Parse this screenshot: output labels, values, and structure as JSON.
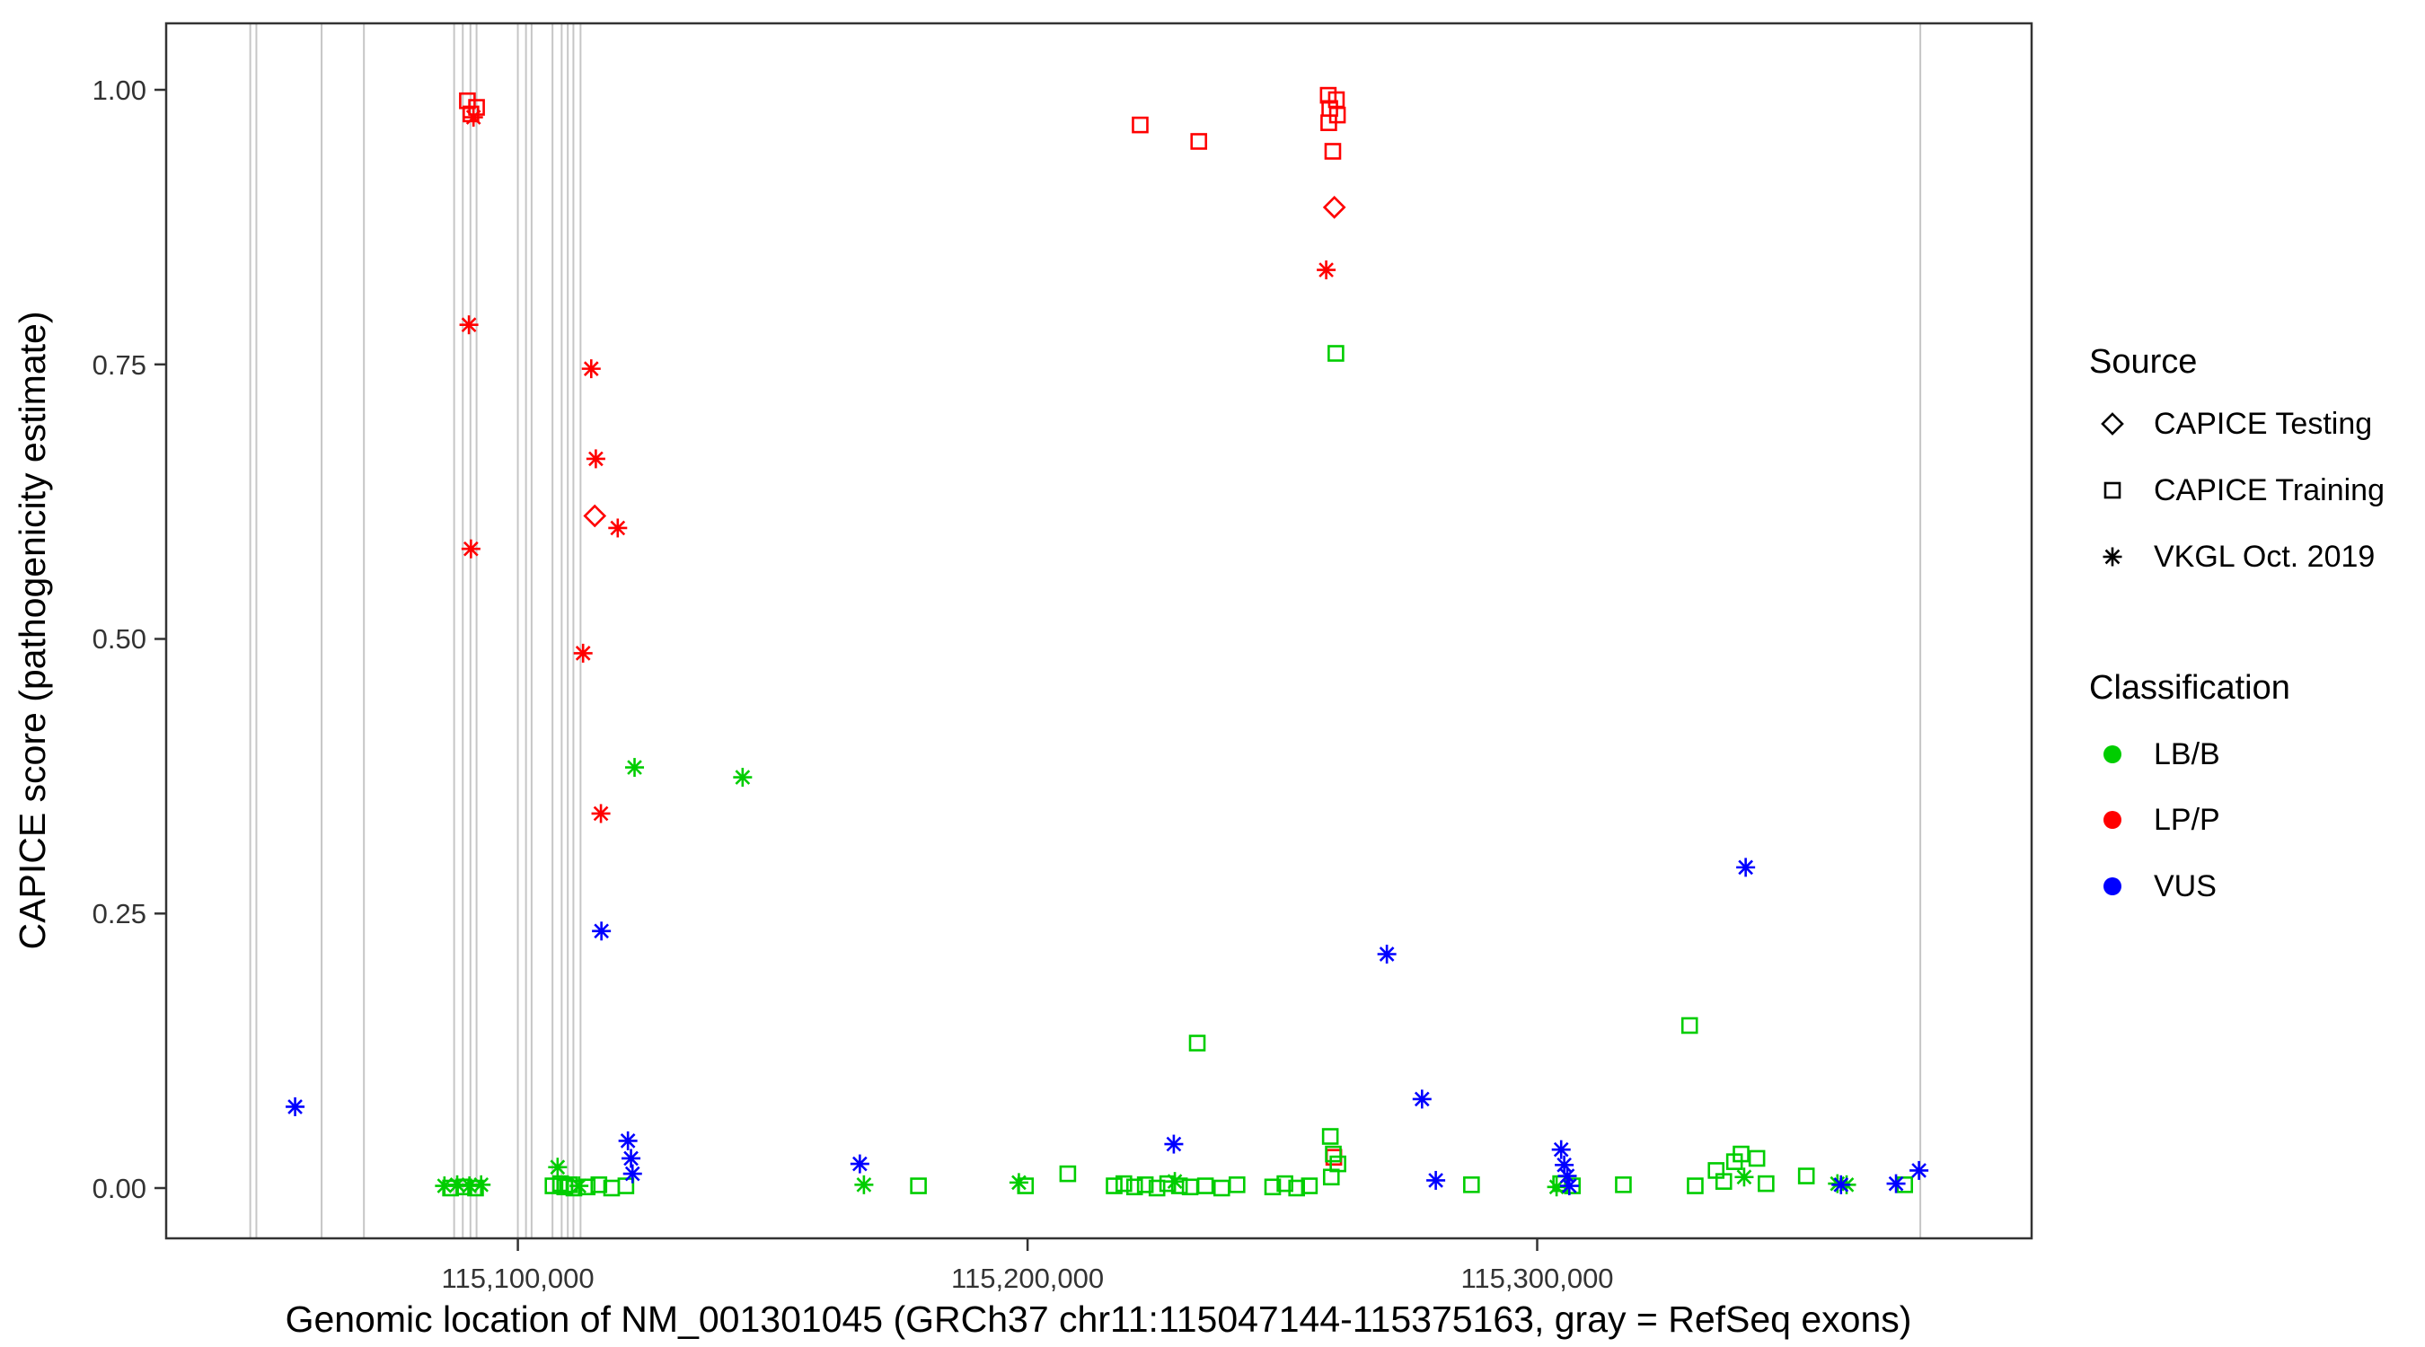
{
  "chart_data": {
    "type": "scatter",
    "title": "",
    "xlabel": "Genomic location of NM_001301045 (GRCh37 chr11:115047144-115375163, gray = RefSeq exons)",
    "ylabel": "CAPICE score (pathogenicity estimate)",
    "xlim": [
      115031000,
      115397000
    ],
    "ylim": [
      -0.0458,
      1.0605
    ],
    "grid": false,
    "legend_position": "right",
    "x_ticks": [
      {
        "value": 115100000,
        "label": "115,100,000"
      },
      {
        "value": 115200000,
        "label": "115,200,000"
      },
      {
        "value": 115300000,
        "label": "115,300,000"
      }
    ],
    "y_ticks": [
      {
        "value": 0.0,
        "label": "0.00"
      },
      {
        "value": 0.25,
        "label": "0.25"
      },
      {
        "value": 0.5,
        "label": "0.50"
      },
      {
        "value": 0.75,
        "label": "0.75"
      },
      {
        "value": 1.0,
        "label": "1.00"
      }
    ],
    "colors": {
      "exon": "#C6C6C6",
      "panel_border": "#333333"
    },
    "shape_by_source": {
      "CAPICE Testing": "diamond",
      "CAPICE Training": "square",
      "VKGL Oct. 2019": "asterisk"
    },
    "color_by_classification": {
      "LB/B": "#00CD00",
      "LP/P": "#FF0000",
      "VUS": "#0000FF"
    },
    "legend": {
      "source": {
        "title": "Source",
        "items": [
          {
            "label": "CAPICE Testing",
            "shape": "diamond"
          },
          {
            "label": "CAPICE Training",
            "shape": "square"
          },
          {
            "label": "VKGL Oct. 2019",
            "shape": "asterisk"
          }
        ]
      },
      "classification": {
        "title": "Classification",
        "items": [
          {
            "label": "LB/B",
            "color": "#00CD00"
          },
          {
            "label": "LP/P",
            "color": "#FF0000"
          },
          {
            "label": "VUS",
            "color": "#0000FF"
          }
        ]
      }
    },
    "exons_note": "gray vertical lines = RefSeq exons",
    "exons": [
      115047500,
      115048700,
      115061500,
      115069800,
      115087500,
      115089200,
      115090700,
      115091900,
      115100000,
      115101600,
      115102700,
      115106800,
      115108600,
      115109800,
      115110900,
      115112300,
      115375163
    ],
    "points_format": [
      "bp",
      "score",
      "source",
      "classification"
    ],
    "points": [
      [
        115090100,
        0.99,
        "CAPICE Training",
        "LP/P"
      ],
      [
        115091900,
        0.984,
        "CAPICE Training",
        "LP/P"
      ],
      [
        115090800,
        0.978,
        "CAPICE Training",
        "LP/P"
      ],
      [
        115091300,
        0.975,
        "VKGL Oct. 2019",
        "LP/P"
      ],
      [
        115090400,
        0.786,
        "VKGL Oct. 2019",
        "LP/P"
      ],
      [
        115090800,
        0.582,
        "VKGL Oct. 2019",
        "LP/P"
      ],
      [
        115114400,
        0.746,
        "VKGL Oct. 2019",
        "LP/P"
      ],
      [
        115115300,
        0.664,
        "VKGL Oct. 2019",
        "LP/P"
      ],
      [
        115115100,
        0.612,
        "CAPICE Testing",
        "LP/P"
      ],
      [
        115119600,
        0.601,
        "VKGL Oct. 2019",
        "LP/P"
      ],
      [
        115112800,
        0.487,
        "VKGL Oct. 2019",
        "LP/P"
      ],
      [
        115116300,
        0.341,
        "VKGL Oct. 2019",
        "LP/P"
      ],
      [
        115222100,
        0.968,
        "CAPICE Training",
        "LP/P"
      ],
      [
        115233600,
        0.953,
        "CAPICE Training",
        "LP/P"
      ],
      [
        115259000,
        0.995,
        "CAPICE Training",
        "LP/P"
      ],
      [
        115260600,
        0.991,
        "CAPICE Training",
        "LP/P"
      ],
      [
        115259300,
        0.983,
        "CAPICE Training",
        "LP/P"
      ],
      [
        115260800,
        0.977,
        "CAPICE Training",
        "LP/P"
      ],
      [
        115259100,
        0.97,
        "CAPICE Training",
        "LP/P"
      ],
      [
        115259900,
        0.944,
        "CAPICE Training",
        "LP/P"
      ],
      [
        115260200,
        0.893,
        "CAPICE Testing",
        "LP/P"
      ],
      [
        115258600,
        0.836,
        "VKGL Oct. 2019",
        "LP/P"
      ],
      [
        115260100,
        0.028,
        "CAPICE Training",
        "LP/P"
      ],
      [
        115122900,
        0.383,
        "VKGL Oct. 2019",
        "LB/B"
      ],
      [
        115144100,
        0.374,
        "VKGL Oct. 2019",
        "LB/B"
      ],
      [
        115260500,
        0.76,
        "CAPICE Training",
        "LB/B"
      ],
      [
        115233300,
        0.132,
        "CAPICE Training",
        "LB/B"
      ],
      [
        115329900,
        0.148,
        "CAPICE Training",
        "LB/B"
      ],
      [
        115085600,
        0.002,
        "VKGL Oct. 2019",
        "LB/B"
      ],
      [
        115086800,
        0.0,
        "CAPICE Training",
        "LB/B"
      ],
      [
        115088100,
        0.003,
        "VKGL Oct. 2019",
        "LB/B"
      ],
      [
        115089400,
        0.001,
        "CAPICE Training",
        "LB/B"
      ],
      [
        115090500,
        0.002,
        "VKGL Oct. 2019",
        "LB/B"
      ],
      [
        115091700,
        0.0,
        "CAPICE Training",
        "LB/B"
      ],
      [
        115092800,
        0.003,
        "VKGL Oct. 2019",
        "LB/B"
      ],
      [
        115106900,
        0.002,
        "CAPICE Training",
        "LB/B"
      ],
      [
        115107800,
        0.019,
        "VKGL Oct. 2019",
        "LB/B"
      ],
      [
        115108400,
        0.004,
        "CAPICE Training",
        "LB/B"
      ],
      [
        115109200,
        0.001,
        "CAPICE Training",
        "LB/B"
      ],
      [
        115110100,
        0.003,
        "CAPICE Training",
        "LB/B"
      ],
      [
        115111000,
        0.0,
        "CAPICE Training",
        "LB/B"
      ],
      [
        115112000,
        0.002,
        "VKGL Oct. 2019",
        "LB/B"
      ],
      [
        115113600,
        0.001,
        "CAPICE Training",
        "LB/B"
      ],
      [
        115115900,
        0.003,
        "CAPICE Training",
        "LB/B"
      ],
      [
        115118400,
        0.0,
        "CAPICE Training",
        "LB/B"
      ],
      [
        115121200,
        0.002,
        "CAPICE Training",
        "LB/B"
      ],
      [
        115167900,
        0.003,
        "VKGL Oct. 2019",
        "LB/B"
      ],
      [
        115178600,
        0.002,
        "CAPICE Training",
        "LB/B"
      ],
      [
        115198300,
        0.005,
        "VKGL Oct. 2019",
        "LB/B"
      ],
      [
        115199600,
        0.002,
        "CAPICE Training",
        "LB/B"
      ],
      [
        115207900,
        0.013,
        "CAPICE Training",
        "LB/B"
      ],
      [
        115217000,
        0.002,
        "CAPICE Training",
        "LB/B"
      ],
      [
        115218900,
        0.004,
        "CAPICE Training",
        "LB/B"
      ],
      [
        115221000,
        0.001,
        "CAPICE Training",
        "LB/B"
      ],
      [
        115223100,
        0.003,
        "CAPICE Training",
        "LB/B"
      ],
      [
        115225400,
        0.0,
        "CAPICE Training",
        "LB/B"
      ],
      [
        115227500,
        0.004,
        "CAPICE Training",
        "LB/B"
      ],
      [
        115228900,
        0.006,
        "VKGL Oct. 2019",
        "LB/B"
      ],
      [
        115229800,
        0.002,
        "CAPICE Training",
        "LB/B"
      ],
      [
        115231900,
        0.001,
        "CAPICE Training",
        "LB/B"
      ],
      [
        115234900,
        0.002,
        "CAPICE Training",
        "LB/B"
      ],
      [
        115238100,
        0.0,
        "CAPICE Training",
        "LB/B"
      ],
      [
        115241100,
        0.003,
        "CAPICE Training",
        "LB/B"
      ],
      [
        115248100,
        0.001,
        "CAPICE Training",
        "LB/B"
      ],
      [
        115250500,
        0.004,
        "CAPICE Training",
        "LB/B"
      ],
      [
        115252800,
        0.0,
        "CAPICE Training",
        "LB/B"
      ],
      [
        115255300,
        0.002,
        "CAPICE Training",
        "LB/B"
      ],
      [
        115259400,
        0.047,
        "CAPICE Training",
        "LB/B"
      ],
      [
        115260000,
        0.031,
        "CAPICE Training",
        "LB/B"
      ],
      [
        115260900,
        0.022,
        "CAPICE Training",
        "LB/B"
      ],
      [
        115259600,
        0.01,
        "CAPICE Training",
        "LB/B"
      ],
      [
        115287100,
        0.003,
        "CAPICE Training",
        "LB/B"
      ],
      [
        115303800,
        0.001,
        "VKGL Oct. 2019",
        "LB/B"
      ],
      [
        115304600,
        0.004,
        "CAPICE Training",
        "LB/B"
      ],
      [
        115306900,
        0.002,
        "CAPICE Training",
        "LB/B"
      ],
      [
        115316900,
        0.003,
        "CAPICE Training",
        "LB/B"
      ],
      [
        115331000,
        0.002,
        "CAPICE Training",
        "LB/B"
      ],
      [
        115335100,
        0.016,
        "CAPICE Training",
        "LB/B"
      ],
      [
        115336600,
        0.006,
        "CAPICE Training",
        "LB/B"
      ],
      [
        115338700,
        0.024,
        "CAPICE Training",
        "LB/B"
      ],
      [
        115340000,
        0.031,
        "CAPICE Training",
        "LB/B"
      ],
      [
        115340600,
        0.01,
        "VKGL Oct. 2019",
        "LB/B"
      ],
      [
        115343100,
        0.027,
        "CAPICE Training",
        "LB/B"
      ],
      [
        115344900,
        0.004,
        "CAPICE Training",
        "LB/B"
      ],
      [
        115352800,
        0.011,
        "CAPICE Training",
        "LB/B"
      ],
      [
        115358900,
        0.004,
        "VKGL Oct. 2019",
        "LB/B"
      ],
      [
        115360700,
        0.003,
        "VKGL Oct. 2019",
        "LB/B"
      ],
      [
        115372100,
        0.003,
        "CAPICE Training",
        "LB/B"
      ],
      [
        115056300,
        0.074,
        "VKGL Oct. 2019",
        "VUS"
      ],
      [
        115116400,
        0.234,
        "VKGL Oct. 2019",
        "VUS"
      ],
      [
        115121600,
        0.043,
        "VKGL Oct. 2019",
        "VUS"
      ],
      [
        115122200,
        0.027,
        "VKGL Oct. 2019",
        "VUS"
      ],
      [
        115122500,
        0.013,
        "VKGL Oct. 2019",
        "VUS"
      ],
      [
        115167100,
        0.022,
        "VKGL Oct. 2019",
        "VUS"
      ],
      [
        115228700,
        0.04,
        "VKGL Oct. 2019",
        "VUS"
      ],
      [
        115270500,
        0.213,
        "VKGL Oct. 2019",
        "VUS"
      ],
      [
        115277400,
        0.081,
        "VKGL Oct. 2019",
        "VUS"
      ],
      [
        115280100,
        0.007,
        "VKGL Oct. 2019",
        "VUS"
      ],
      [
        115304700,
        0.035,
        "VKGL Oct. 2019",
        "VUS"
      ],
      [
        115305300,
        0.021,
        "VKGL Oct. 2019",
        "VUS"
      ],
      [
        115305900,
        0.011,
        "VKGL Oct. 2019",
        "VUS"
      ],
      [
        115306300,
        0.002,
        "VKGL Oct. 2019",
        "VUS"
      ],
      [
        115340900,
        0.292,
        "VKGL Oct. 2019",
        "VUS"
      ],
      [
        115359600,
        0.003,
        "VKGL Oct. 2019",
        "VUS"
      ],
      [
        115370400,
        0.004,
        "VKGL Oct. 2019",
        "VUS"
      ],
      [
        115374900,
        0.016,
        "VKGL Oct. 2019",
        "VUS"
      ]
    ]
  }
}
